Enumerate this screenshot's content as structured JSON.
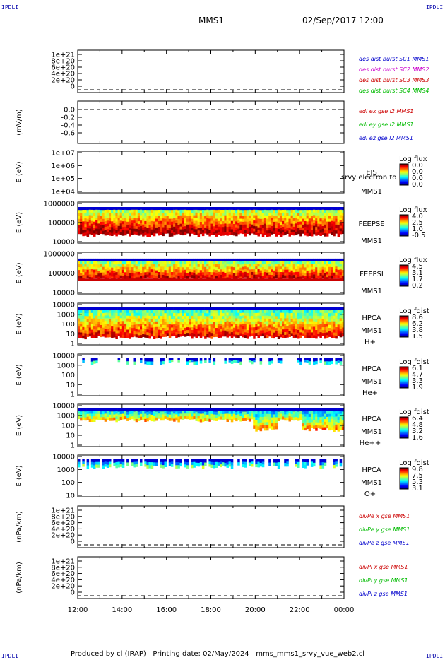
{
  "corners": {
    "tl": "IPDLI",
    "tr": "IPDLI",
    "bl": "IPDLI",
    "br": "IPDLI"
  },
  "header": {
    "mission": "MMS1",
    "datetime": "02/Sep/2017 12:00"
  },
  "footer": {
    "produced": "Produced by cl (IRAP)",
    "printing": "Printing date: 02/May/2024",
    "script": "mms_mms1_srvy_vue_web2.cl"
  },
  "chart_data": [
    {
      "type": "line",
      "id": "des",
      "ylabel": "",
      "yticks": [
        "1e+21",
        "8e+20",
        "6e+20",
        "4e+20",
        "2e+20",
        "0"
      ],
      "legend": [
        {
          "text": "des dist burst SC1 MMS1",
          "color": "#0000cc"
        },
        {
          "text": "des dist burst SC2 MMS2",
          "color": "#cc00cc"
        },
        {
          "text": "des dist burst SC3 MMS3",
          "color": "#cc0000"
        },
        {
          "text": "des dist burst SC4 MMS4",
          "color": "#00bb00"
        }
      ]
    },
    {
      "type": "line",
      "id": "edi",
      "ylabel": "(mV/m)",
      "yticks": [
        "-0.0",
        "-0.2",
        "-0.4",
        "-0.6"
      ],
      "legend": [
        {
          "text": "edi ex gse l2 MMS1",
          "color": "#cc0000"
        },
        {
          "text": "edi ey gse l2 MMS1",
          "color": "#00bb00"
        },
        {
          "text": "edi ez gse l2 MMS1",
          "color": "#0000cc"
        }
      ]
    },
    {
      "type": "heatmap",
      "id": "eis",
      "ylabel": "E (eV)",
      "yticks": [
        "1e+07",
        "1e+06",
        "1e+05",
        "1e+04"
      ],
      "side": [
        "EIS",
        "MMS1"
      ],
      "note": "srvy electron to",
      "cbar_title": "Log flux",
      "cbar_ticks": [
        "0.0",
        "0.0",
        "0.0",
        "0.0"
      ]
    },
    {
      "type": "heatmap",
      "id": "feepse",
      "ylabel": "E (eV)",
      "yticks": [
        "1000000",
        "100000",
        "10000"
      ],
      "side": [
        "FEEPSE",
        "MMS1"
      ],
      "cbar_title": "Log flux",
      "cbar_ticks": [
        "4.0",
        "2.5",
        "1.0",
        "-0.5"
      ]
    },
    {
      "type": "heatmap",
      "id": "feepsi",
      "ylabel": "E (eV)",
      "yticks": [
        "1000000",
        "100000",
        "10000"
      ],
      "side": [
        "FEEPSI",
        "MMS1"
      ],
      "cbar_title": "Log flux",
      "cbar_ticks": [
        "4.5",
        "3.1",
        "1.7",
        "0.2"
      ]
    },
    {
      "type": "heatmap",
      "id": "hpca_h",
      "ylabel": "E (eV)",
      "yticks": [
        "10000",
        "1000",
        "100",
        "10",
        "1"
      ],
      "side": [
        "HPCA",
        "MMS1",
        "H+"
      ],
      "cbar_title": "Log fdist",
      "cbar_ticks": [
        "8.6",
        "6.2",
        "3.8",
        "1.5"
      ]
    },
    {
      "type": "heatmap",
      "id": "hpca_he",
      "ylabel": "E (eV)",
      "yticks": [
        "10000",
        "1000",
        "100",
        "10",
        "1"
      ],
      "side": [
        "HPCA",
        "MMS1",
        "He+"
      ],
      "cbar_title": "Log fdist",
      "cbar_ticks": [
        "6.1",
        "4.7",
        "3.3",
        "1.9"
      ]
    },
    {
      "type": "heatmap",
      "id": "hpca_he2",
      "ylabel": "E (eV)",
      "yticks": [
        "10000",
        "1000",
        "100",
        "10",
        "1"
      ],
      "side": [
        "HPCA",
        "MMS1",
        "He++"
      ],
      "cbar_title": "Log fdist",
      "cbar_ticks": [
        "6.4",
        "4.8",
        "3.2",
        "1.6"
      ]
    },
    {
      "type": "heatmap",
      "id": "hpca_o",
      "ylabel": "E (eV)",
      "yticks": [
        "10000",
        "1000",
        "100",
        "10"
      ],
      "side": [
        "HPCA",
        "MMS1",
        "O+"
      ],
      "cbar_title": "Log fdist",
      "cbar_ticks": [
        "9.8",
        "7.5",
        "5.3",
        "3.1"
      ]
    },
    {
      "type": "line",
      "id": "divpe",
      "ylabel": "(nPa/km)",
      "yticks": [
        "1e+21",
        "8e+20",
        "6e+20",
        "4e+20",
        "2e+20",
        "0"
      ],
      "legend": [
        {
          "text": "divPe x gse MMS1",
          "color": "#cc0000"
        },
        {
          "text": "divPe y gse MMS1",
          "color": "#00bb00"
        },
        {
          "text": "divPe z gse MMS1",
          "color": "#0000cc"
        }
      ]
    },
    {
      "type": "line",
      "id": "divpi",
      "ylabel": "(nPa/km)",
      "yticks": [
        "1e+21",
        "8e+20",
        "6e+20",
        "4e+20",
        "2e+20",
        "0"
      ],
      "legend": [
        {
          "text": "divPi x gse MMS1",
          "color": "#cc0000"
        },
        {
          "text": "divPi y gse MMS1",
          "color": "#00bb00"
        },
        {
          "text": "divPi z gse MMS1",
          "color": "#0000cc"
        }
      ]
    }
  ],
  "xaxis": {
    "ticks": [
      "12:00",
      "14:00",
      "16:00",
      "18:00",
      "20:00",
      "22:00",
      "00:00"
    ]
  }
}
